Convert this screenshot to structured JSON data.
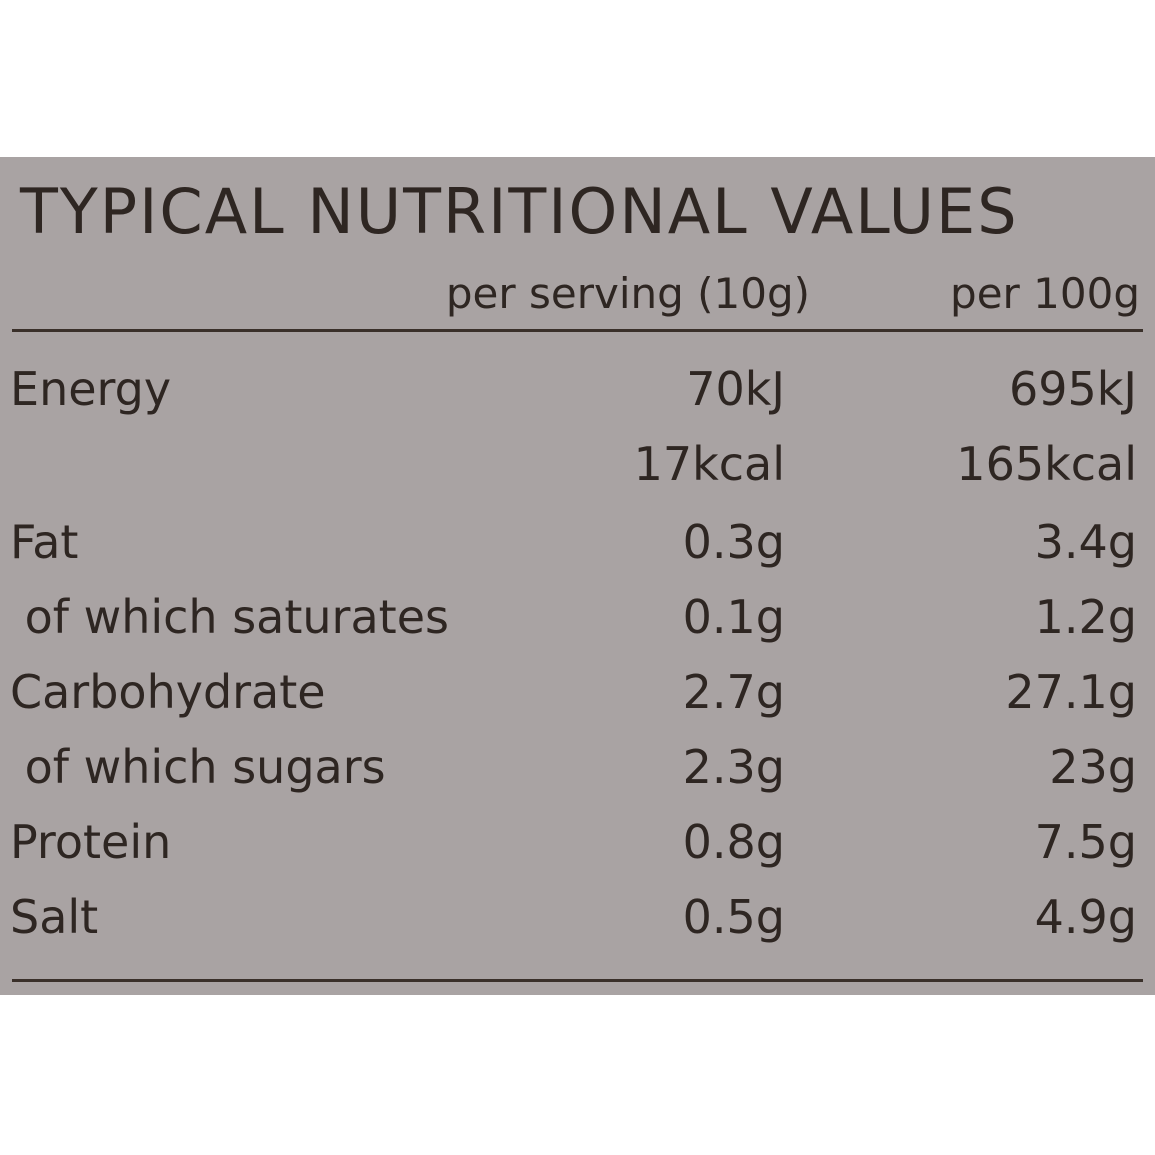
{
  "header": {
    "title": "TYPICAL NUTRITIONAL VALUES"
  },
  "table": {
    "columns": [
      "per serving (10g)",
      "per 100g"
    ],
    "rows": [
      [
        "Energy",
        "70kJ",
        "695kJ"
      ],
      [
        "",
        "17kcal",
        "165kcal"
      ],
      [
        "Fat",
        "0.3g",
        "3.4g"
      ],
      [
        " of which saturates",
        "0.1g",
        "1.2g"
      ],
      [
        "Carbohydrate",
        "2.7g",
        "27.1g"
      ],
      [
        " of which sugars",
        "2.3g",
        "23g"
      ],
      [
        "Protein",
        "0.8g",
        "7.5g"
      ],
      [
        "Salt",
        "0.5g",
        "4.9g"
      ]
    ]
  }
}
